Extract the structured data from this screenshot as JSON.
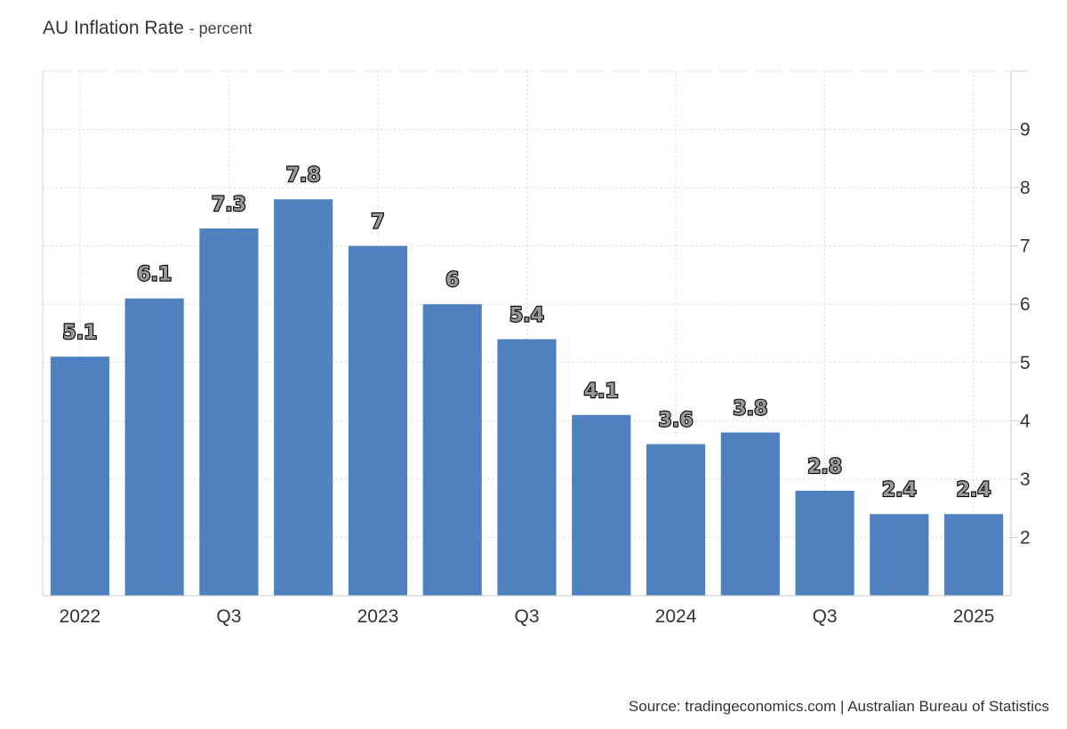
{
  "header": {
    "title": "AU Inflation Rate",
    "subtitle": "- percent"
  },
  "footer": {
    "source": "Source: tradingeconomics.com | Australian Bureau of Statistics"
  },
  "chart_data": {
    "type": "bar",
    "title": "AU Inflation Rate",
    "ylabel": "percent",
    "xlabel": "",
    "categories": [
      "2022 Q1",
      "2022 Q2",
      "2022 Q3",
      "2022 Q4",
      "2023 Q1",
      "2023 Q2",
      "2023 Q3",
      "2023 Q4",
      "2024 Q1",
      "2024 Q2",
      "2024 Q3",
      "2024 Q4",
      "2025 Q1"
    ],
    "values": [
      5.1,
      6.1,
      7.3,
      7.8,
      7,
      6,
      5.4,
      4.1,
      3.6,
      3.8,
      2.8,
      2.4,
      2.4
    ],
    "value_labels": [
      "5.1",
      "6.1",
      "7.3",
      "7.8",
      "7",
      "6",
      "5.4",
      "4.1",
      "3.6",
      "3.8",
      "2.8",
      "2.4",
      "2.4"
    ],
    "x_tick_labels": [
      "2022",
      "",
      "Q3",
      "",
      "2023",
      "",
      "Q3",
      "",
      "2024",
      "",
      "Q3",
      "",
      "2025"
    ],
    "y_ticks": [
      2,
      3,
      4,
      5,
      6,
      7,
      8,
      9
    ],
    "ylim": [
      1,
      10
    ],
    "y_axis_side": "right",
    "grid": true,
    "bar_color": "#4e81bd"
  }
}
